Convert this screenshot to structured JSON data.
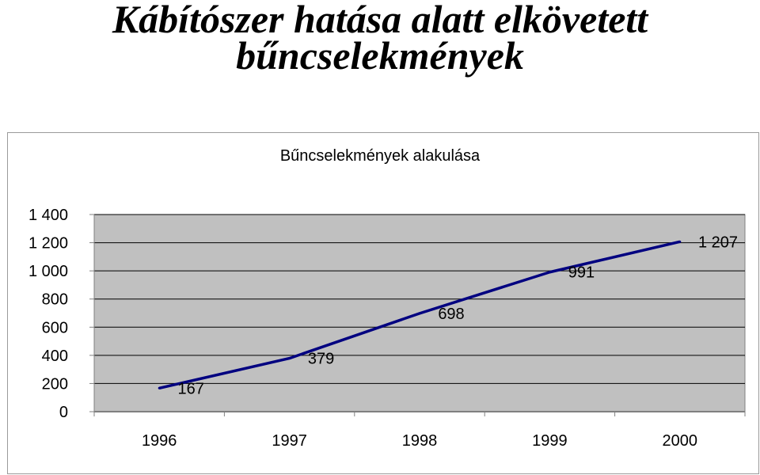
{
  "slide": {
    "title_line1": "Kábítószer hatása alatt elkövetett",
    "title_line2": "bűncselekmények"
  },
  "chart_data": {
    "type": "line",
    "title": "Bűncselekmények alakulása",
    "categories": [
      "1996",
      "1997",
      "1998",
      "1999",
      "2000"
    ],
    "series": [
      {
        "values": [
          167,
          379,
          698,
          991,
          1207
        ],
        "labels": [
          "167",
          "379",
          "698",
          "991",
          "1 207"
        ],
        "color": "#000080"
      }
    ],
    "ylim": [
      0,
      1400
    ],
    "yticks": [
      0,
      200,
      400,
      600,
      800,
      1000,
      1200,
      1400
    ],
    "ytick_labels": [
      "0",
      "200",
      "400",
      "600",
      "800",
      "1 000",
      "1 200",
      "1 400"
    ],
    "xlabel": "",
    "ylabel": "",
    "grid": true,
    "plot_background": "#c0c0c0",
    "legend": "none"
  }
}
